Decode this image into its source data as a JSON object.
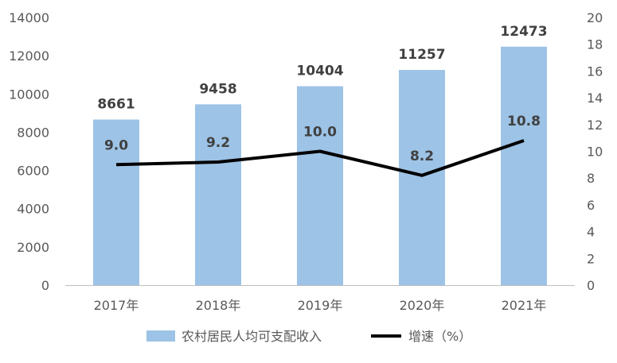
{
  "chart_data": {
    "type": "bar",
    "categories": [
      "2017年",
      "2018年",
      "2019年",
      "2020年",
      "2021年"
    ],
    "series": [
      {
        "name": "农村居民人均可支配收入",
        "type": "bar",
        "axis": "left",
        "values": [
          8661,
          9458,
          10404,
          11257,
          12473
        ],
        "labels": [
          "8661",
          "9458",
          "10404",
          "11257",
          "12473"
        ]
      },
      {
        "name": "增速（%）",
        "type": "line",
        "axis": "right",
        "values": [
          9.0,
          9.2,
          10.0,
          8.2,
          10.8
        ],
        "labels": [
          "9.0",
          "9.2",
          "10.0",
          "8.2",
          "10.8"
        ]
      }
    ],
    "y_left": {
      "range": [
        0,
        14000
      ],
      "ticks": [
        "0",
        "2000",
        "4000",
        "6000",
        "8000",
        "10000",
        "12000",
        "14000"
      ]
    },
    "y_right": {
      "range": [
        0,
        20
      ],
      "ticks": [
        "0",
        "2",
        "4",
        "6",
        "8",
        "10",
        "12",
        "14",
        "16",
        "18",
        "20"
      ]
    },
    "legend": "bottom",
    "grid": false,
    "colors": {
      "bar": "#9DC3E6",
      "line": "#000000"
    }
  }
}
